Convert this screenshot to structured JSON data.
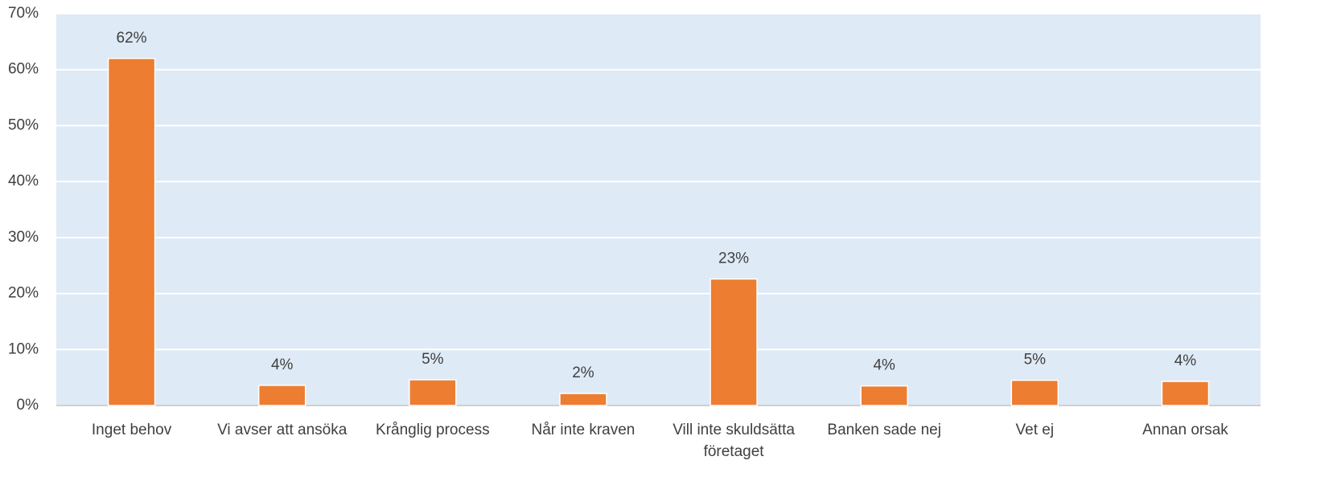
{
  "chart_data": {
    "type": "bar",
    "categories": [
      "Inget behov",
      "Vi avser att ansöka",
      "Krånglig process",
      "Når inte kraven",
      "Vill inte skuldsätta företaget",
      "Banken sade nej",
      "Vet ej",
      "Annan orsak"
    ],
    "values": [
      62,
      3.6,
      4.6,
      2.15,
      22.6,
      3.5,
      4.5,
      4.3
    ],
    "value_labels": [
      "62%",
      "4%",
      "5%",
      "2%",
      "23%",
      "4%",
      "5%",
      "4%"
    ],
    "color": "#ed7d31",
    "ylim": [
      0,
      70
    ],
    "yticks": [
      {
        "value": 0,
        "label": "0%"
      },
      {
        "value": 10,
        "label": "10%"
      },
      {
        "value": 20,
        "label": "20%"
      },
      {
        "value": 30,
        "label": "30%"
      },
      {
        "value": 40,
        "label": "40%"
      },
      {
        "value": 50,
        "label": "50%"
      },
      {
        "value": 60,
        "label": "60%"
      },
      {
        "value": 70,
        "label": "70%"
      }
    ],
    "grid": true
  }
}
